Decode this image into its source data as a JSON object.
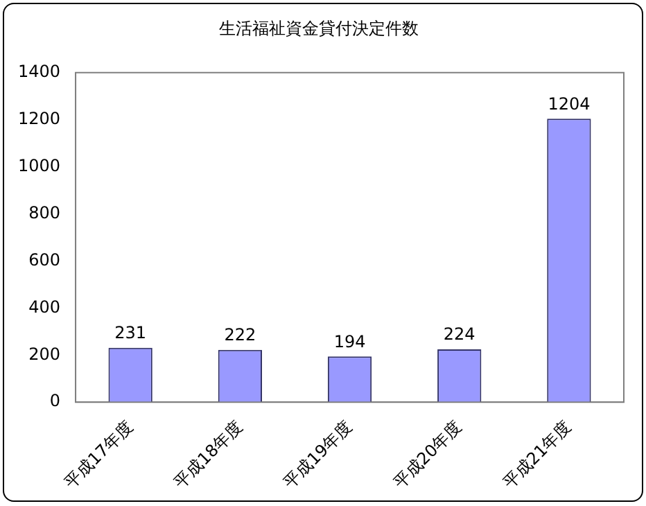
{
  "chart_data": {
    "type": "bar",
    "title": "生活福祉資金貸付決定件数",
    "categories": [
      "平成17年度",
      "平成18年度",
      "平成19年度",
      "平成20年度",
      "平成21年度"
    ],
    "values": [
      231,
      222,
      194,
      224,
      1204
    ],
    "color": "#9999ff",
    "ylim": [
      0,
      1400
    ],
    "yticks": [
      0,
      200,
      400,
      600,
      800,
      1000,
      1200,
      1400
    ],
    "data_labels": true,
    "grid": false,
    "legend": false
  }
}
